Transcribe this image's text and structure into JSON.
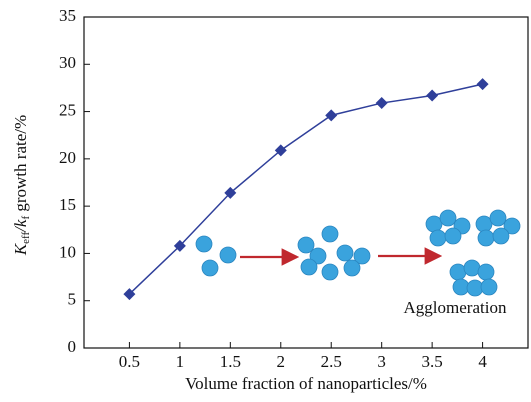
{
  "chart_data": {
    "type": "line",
    "xlabel": "Volume fraction of nanoparticles/%",
    "ylabel": [
      "K",
      "eff",
      "/k",
      "f",
      " growth rate/%"
    ],
    "annotation": "Agglomeration",
    "x": [
      0.5,
      1,
      1.5,
      2,
      2.5,
      3,
      3.5,
      4
    ],
    "series": [
      {
        "color": "#2f3f9a",
        "values": [
          5.7,
          10.8,
          16.4,
          20.9,
          24.6,
          25.9,
          26.7,
          27.9
        ]
      }
    ],
    "xlim": [
      0.05,
      4.45
    ],
    "xticks": [
      0.5,
      1,
      1.5,
      2,
      2.5,
      3,
      3.5,
      4
    ],
    "ylim": [
      0,
      35
    ],
    "yticks": [
      0,
      5,
      10,
      15,
      20,
      25,
      30,
      35
    ],
    "grid": false
  }
}
